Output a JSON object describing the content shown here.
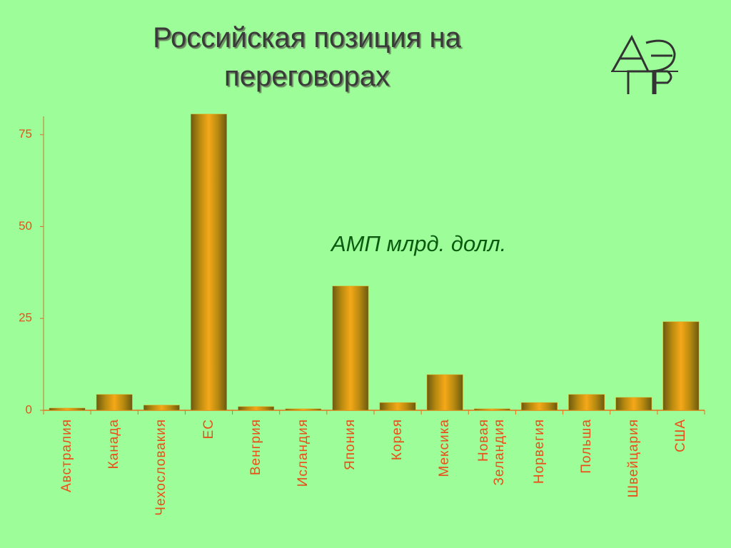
{
  "chart_data": {
    "type": "bar",
    "title": "Российская позиция на переговорах",
    "annotation": "АМП млрд. долл.",
    "categories": [
      "Австралия",
      "Канада",
      "Чехословакия",
      "ЕС",
      "Венгрия",
      "Исландия",
      "Япония",
      "Корея",
      "Мексика",
      "Новая\nЗеландия",
      "Норвегия",
      "Польша",
      "Швейцария",
      "США"
    ],
    "values": [
      0.6,
      4.3,
      1.4,
      80.6,
      1.0,
      0.4,
      33.8,
      2.1,
      9.7,
      0.4,
      2.1,
      4.3,
      3.5,
      24.1
    ],
    "color": "#e8a010",
    "ylim": [
      0,
      80
    ],
    "yticks": [
      0,
      25,
      50,
      75
    ]
  }
}
